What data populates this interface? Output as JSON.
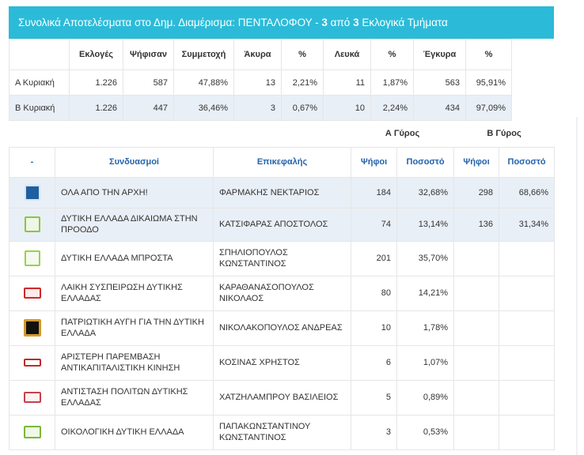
{
  "header": {
    "prefix": "Συνολικά Αποτελέσματα στο Δημ. Διαμέρισμα: ΠΕΝΤΑΛΟΦΟΥ - ",
    "done": "3",
    "middle": " από ",
    "total": "3",
    "suffix": " Εκλογικά Τμήματα"
  },
  "summary": {
    "columns": [
      "",
      "Εκλογές",
      "Ψήφισαν",
      "Συμμετοχή",
      "Άκυρα",
      "%",
      "Λευκά",
      "%",
      "Έγκυρα",
      "%"
    ],
    "rows": [
      [
        "Α Κυριακή",
        "1.226",
        "587",
        "47,88%",
        "13",
        "2,21%",
        "11",
        "1,87%",
        "563",
        "95,91%"
      ],
      [
        "Β Κυριακή",
        "1.226",
        "447",
        "36,46%",
        "3",
        "0,67%",
        "10",
        "2,24%",
        "434",
        "97,09%"
      ]
    ]
  },
  "results": {
    "round_a": "Α Γύρος",
    "round_b": "Β Γύρος",
    "columns": [
      "-",
      "Συνδυασμοί",
      "Επικεφαλής",
      "Ψήφοι",
      "Ποσοστό",
      "Ψήφοι",
      "Ποσοστό"
    ],
    "rows": [
      {
        "logo": "ola-apo-tin-arxi-logo",
        "party": "ΟΛΑ ΑΠΟ ΤΗΝ ΑΡΧΗ!",
        "leader": "ΦΑΡΜΑΚΗΣ ΝΕΚΤΑΡΙΟΣ",
        "votes_a": "184",
        "pct_a": "32,68%",
        "votes_b": "298",
        "pct_b": "68,66%",
        "highlight": true
      },
      {
        "logo": "dytiki-ellada-dikaioma-logo",
        "party": "ΔΥΤΙΚΗ ΕΛΛΑΔΑ ΔΙΚΑΙΩΜΑ ΣΤΗΝ ΠΡΟΟΔΟ",
        "leader": "ΚΑΤΣΙΦΑΡΑΣ ΑΠΟΣΤΟΛΟΣ",
        "votes_a": "74",
        "pct_a": "13,14%",
        "votes_b": "136",
        "pct_b": "31,34%",
        "highlight": true
      },
      {
        "logo": "dytiki-ellada-mprosta-logo",
        "party": "ΔΥΤΙΚΗ ΕΛΛΑΔΑ ΜΠΡΟΣΤΑ",
        "leader": "ΣΠΗΛΙΟΠΟΥΛΟΣ ΚΩΝΣΤΑΝΤΙΝΟΣ",
        "votes_a": "201",
        "pct_a": "35,70%",
        "votes_b": "",
        "pct_b": "",
        "highlight": false
      },
      {
        "logo": "laiki-syspeirosi-logo",
        "party": "ΛΑΙΚΗ ΣΥΣΠΕΙΡΩΣΗ ΔΥΤΙΚΗΣ ΕΛΛΑΔΑΣ",
        "leader": "ΚΑΡΑΘΑΝΑΣΟΠΟΥΛΟΣ ΝΙΚΟΛΑΟΣ",
        "votes_a": "80",
        "pct_a": "14,21%",
        "votes_b": "",
        "pct_b": "",
        "highlight": false
      },
      {
        "logo": "patriotiki-avgi-logo",
        "party": "ΠΑΤΡΙΩΤΙΚΗ ΑΥΓΗ ΓΙΑ ΤΗΝ ΔΥΤΙΚΗ ΕΛΛΑΔΑ",
        "leader": "ΝΙΚΟΛΑΚΟΠΟΥΛΟΣ ΑΝΔΡΕΑΣ",
        "votes_a": "10",
        "pct_a": "1,78%",
        "votes_b": "",
        "pct_b": "",
        "highlight": false
      },
      {
        "logo": "aristeri-paremvasi-logo",
        "party": "ΑΡΙΣΤΕΡΗ ΠΑΡΕΜΒΑΣΗ ΑΝΤΙΚΑΠΙΤΑΛΙΣΤΙΚΗ ΚΙΝΗΣΗ",
        "leader": "ΚΟΣΙΝΑΣ ΧΡΗΣΤΟΣ",
        "votes_a": "6",
        "pct_a": "1,07%",
        "votes_b": "",
        "pct_b": "",
        "highlight": false
      },
      {
        "logo": "antistasi-politon-logo",
        "party": "ΑΝΤΙΣΤΑΣΗ ΠΟΛΙΤΩΝ ΔΥΤΙΚΗΣ ΕΛΛΑΔΑΣ",
        "leader": "ΧΑΤΖΗΛΑΜΠΡΟΥ ΒΑΣΙΛΕΙΟΣ",
        "votes_a": "5",
        "pct_a": "0,89%",
        "votes_b": "",
        "pct_b": "",
        "highlight": false
      },
      {
        "logo": "oikologiki-dytiki-ellada-logo",
        "party": "ΟΙΚΟΛΟΓΙΚΗ ΔΥΤΙΚΗ ΕΛΛΑΔΑ",
        "leader": "ΠΑΠΑΚΩΝΣΤΑΝΤΙΝΟΥ ΚΩΝΣΤΑΝΤΙΝΟΣ",
        "votes_a": "3",
        "pct_a": "0,53%",
        "votes_b": "",
        "pct_b": "",
        "highlight": false
      }
    ]
  }
}
